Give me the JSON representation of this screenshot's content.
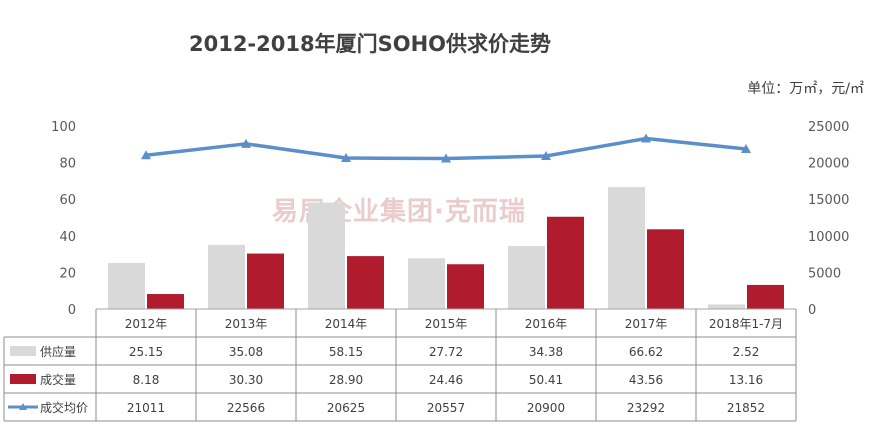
{
  "chart_data": {
    "type": "bar",
    "title": "2012-2018年厦门SOHO供求价走势",
    "unit_label": "单位：万㎡，元/㎡",
    "categories": [
      "2012年",
      "2013年",
      "2014年",
      "2015年",
      "2016年",
      "2017年",
      "2018年1-7月"
    ],
    "series": [
      {
        "name": "供应量",
        "type": "bar",
        "axis": "left",
        "color": "#d9d9d9",
        "values": [
          25.15,
          35.08,
          58.15,
          27.72,
          34.38,
          66.62,
          2.52
        ]
      },
      {
        "name": "成交量",
        "type": "bar",
        "axis": "left",
        "color": "#b01c2e",
        "values": [
          8.18,
          30.3,
          28.9,
          24.46,
          50.41,
          43.56,
          13.16
        ]
      },
      {
        "name": "成交均价",
        "type": "line",
        "axis": "right",
        "color": "#5b8fc9",
        "values": [
          21011,
          22566,
          20625,
          20557,
          20900,
          23292,
          21852
        ]
      }
    ],
    "table_values": [
      [
        "25.15",
        "35.08",
        "58.15",
        "27.72",
        "34.38",
        "66.62",
        "2.52"
      ],
      [
        "8.18",
        "30.30",
        "28.90",
        "24.46",
        "50.41",
        "43.56",
        "13.16"
      ],
      [
        "21011",
        "22566",
        "20625",
        "20557",
        "20900",
        "23292",
        "21852"
      ]
    ],
    "ylim_left": [
      0,
      100
    ],
    "ylim_right": [
      0,
      25000
    ],
    "yticks_left": [
      "0",
      "20",
      "40",
      "60",
      "80",
      "100"
    ],
    "yticks_right": [
      "0",
      "5000",
      "10000",
      "15000",
      "20000",
      "25000"
    ],
    "grid": false,
    "legend_placement": "data-table-left",
    "watermark_text": "易居企业集团·克而瑞"
  }
}
